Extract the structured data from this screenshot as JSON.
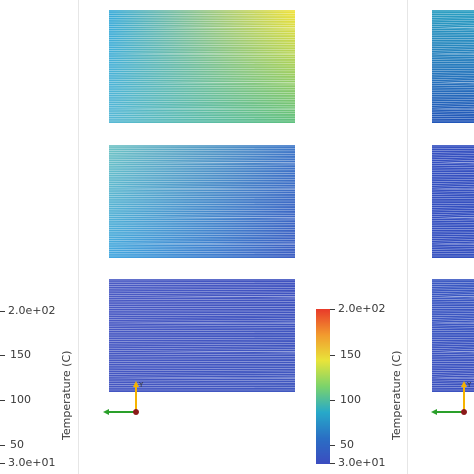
{
  "colorbar": {
    "title": "Temperature (C)",
    "ticks": [
      "2.0e+02",
      "150",
      "100",
      "50",
      "3.0e+01"
    ],
    "range": [
      30,
      200
    ],
    "colors": [
      "#3b4cc0",
      "#2a6fc4",
      "#27a9c9",
      "#7bd36b",
      "#e8e43a",
      "#f29a2e",
      "#e83a2a"
    ]
  },
  "orientation_axes": {
    "y_label": "Y",
    "x_color": "#2aa02a",
    "y_color": "#f5b300",
    "origin_color": "#8b1a1a"
  },
  "panels": {
    "top": {
      "top_left": "#36a9d9",
      "top_right": "#f2e23a",
      "bottom_left": "#58b9d6",
      "bottom_right": "#5fc07e"
    },
    "middle": {
      "top_left": "#6fc3c4",
      "top_right": "#3f77c8",
      "bottom_left": "#42a7e0",
      "bottom_right": "#3d5ec3"
    },
    "bottom": {
      "top_left": "#4b5bc4",
      "top_right": "#3f52bf",
      "bottom_left": "#4456c2",
      "bottom_right": "#4158c0"
    },
    "right_top": {
      "top_left": "#2a9dc0",
      "top_right": "#2b9fc2",
      "bottom_left": "#2357b9",
      "bottom_right": "#2357b9"
    },
    "right_middle": {
      "top_left": "#3550c0",
      "top_right": "#3550c0",
      "bottom_left": "#3550c0",
      "bottom_right": "#3550c0"
    },
    "right_bottom": {
      "top_left": "#3a58c2",
      "top_right": "#3a58c2",
      "bottom_left": "#3d52c0",
      "bottom_right": "#3d52c0"
    }
  }
}
